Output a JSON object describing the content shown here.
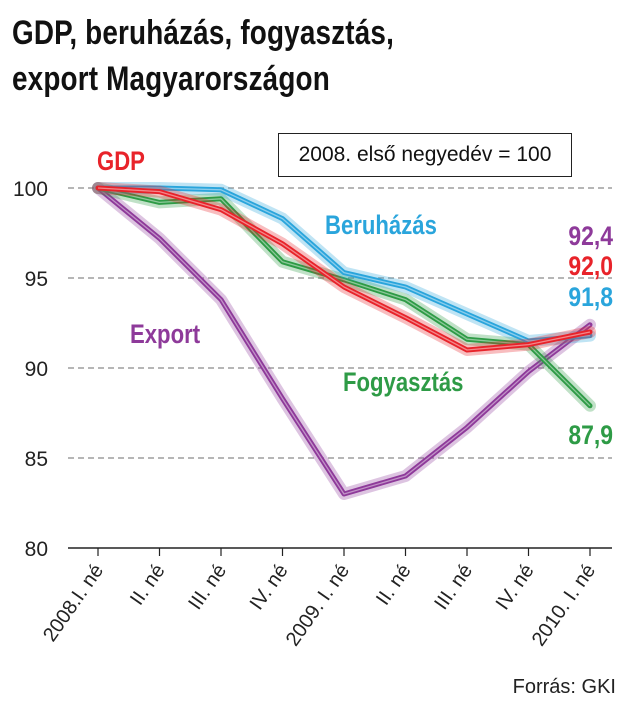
{
  "title_lines": [
    "GDP, beruházás, fogyasztás,",
    "export Magyarországon"
  ],
  "note": "2008. első negyedév = 100",
  "source": "Forrás: GKI",
  "chart_data": {
    "type": "line",
    "categories": [
      "2008.I. né",
      "II. né",
      "III. né",
      "IV. né",
      "2009. I. né",
      "II. né",
      "III. né",
      "IV. né",
      "2010. I. né"
    ],
    "ylim": [
      80,
      100
    ],
    "yticks": [
      80,
      85,
      90,
      95,
      100
    ],
    "grid": "dashed horizontal",
    "series": [
      {
        "name": "GDP",
        "color": "#e8232a",
        "values": [
          100,
          99.8,
          98.8,
          96.9,
          94.5,
          92.8,
          91.0,
          91.3,
          92.0
        ],
        "end_label": "92,0"
      },
      {
        "name": "Beruházás",
        "color": "#2aa5dc",
        "values": [
          100,
          100,
          99.9,
          98.3,
          95.3,
          94.5,
          93.0,
          91.5,
          91.8
        ],
        "end_label": "91,8"
      },
      {
        "name": "Fogyasztás",
        "color": "#2e9b46",
        "values": [
          100,
          99.2,
          99.4,
          95.9,
          94.9,
          93.8,
          91.6,
          91.3,
          87.9
        ],
        "end_label": "87,9"
      },
      {
        "name": "Export",
        "color": "#8e3a9a",
        "values": [
          100,
          97.2,
          93.8,
          88.3,
          83.0,
          84.0,
          86.7,
          89.8,
          92.4
        ],
        "end_label": "92,4"
      }
    ]
  }
}
